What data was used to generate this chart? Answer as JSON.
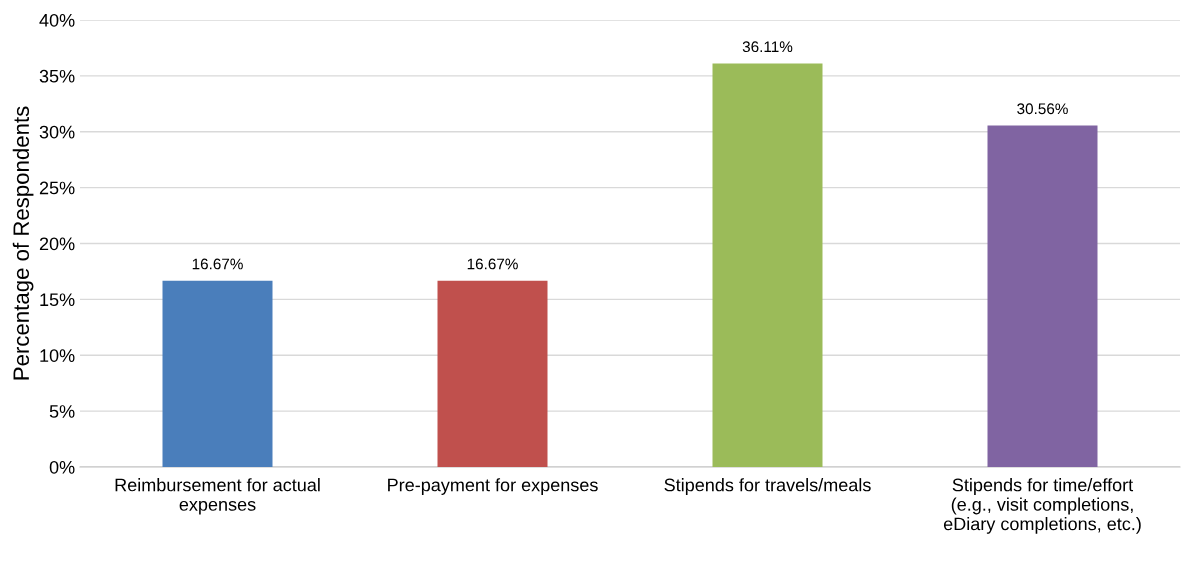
{
  "chart_data": {
    "type": "bar",
    "ylabel": "Percentage of Respondents",
    "categories": [
      "Reimbursement for actual\nexpenses",
      "Pre-payment for expenses",
      "Stipends for travels/meals",
      "Stipends for time/effort\n(e.g., visit completions,\neDiary completions, etc.)"
    ],
    "values": [
      16.67,
      16.67,
      36.11,
      30.56
    ],
    "colors": [
      "#4a7ebb",
      "#c0504d",
      "#9bbb59",
      "#8064a2"
    ],
    "value_labels": [
      "16.67%",
      "16.67%",
      "36.11%",
      "30.56%"
    ],
    "ylim": [
      0,
      40
    ],
    "yticks": [
      {
        "value": 0,
        "label": "0%"
      },
      {
        "value": 5,
        "label": "5%"
      },
      {
        "value": 10,
        "label": "10%"
      },
      {
        "value": 15,
        "label": "15%"
      },
      {
        "value": 20,
        "label": "20%"
      },
      {
        "value": 25,
        "label": "25%"
      },
      {
        "value": 30,
        "label": "30%"
      },
      {
        "value": 35,
        "label": "35%"
      },
      {
        "value": 40,
        "label": "40%"
      }
    ],
    "grid": "y",
    "legend": false
  }
}
